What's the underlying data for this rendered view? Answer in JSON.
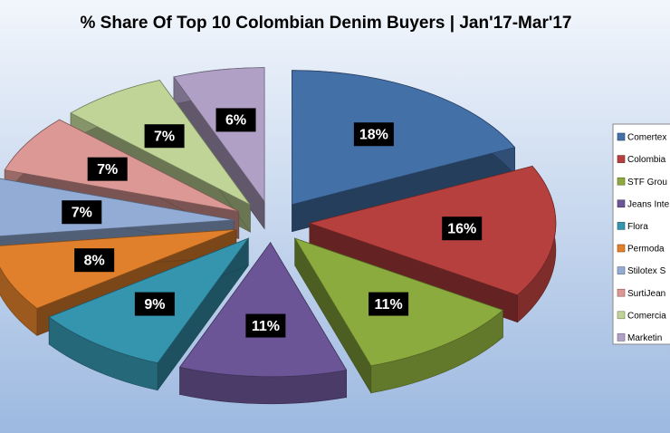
{
  "chart_data": {
    "type": "pie3d",
    "title": "% Share Of Top 10 Colombian Denim Buyers | Jan'17-Mar'17",
    "categories": [
      "Comertex",
      "Colombia",
      "STF Grou",
      "Jeans Inte",
      "Flora",
      "Permoda",
      "Stilotex S",
      "SurtiJean",
      "Comercia",
      "Marketin"
    ],
    "values": [
      18,
      16,
      11,
      11,
      9,
      8,
      7,
      7,
      7,
      6
    ],
    "value_labels": [
      "18%",
      "16%",
      "11%",
      "11%",
      "9%",
      "8%",
      "7%",
      "7%",
      "7%",
      "6%"
    ],
    "colors": [
      "#4470a8",
      "#b5403d",
      "#8cab3e",
      "#6b5596",
      "#3594ae",
      "#e0802c",
      "#93acd6",
      "#dc9895",
      "#c0d498",
      "#b0a0c5"
    ],
    "legend": "right"
  }
}
